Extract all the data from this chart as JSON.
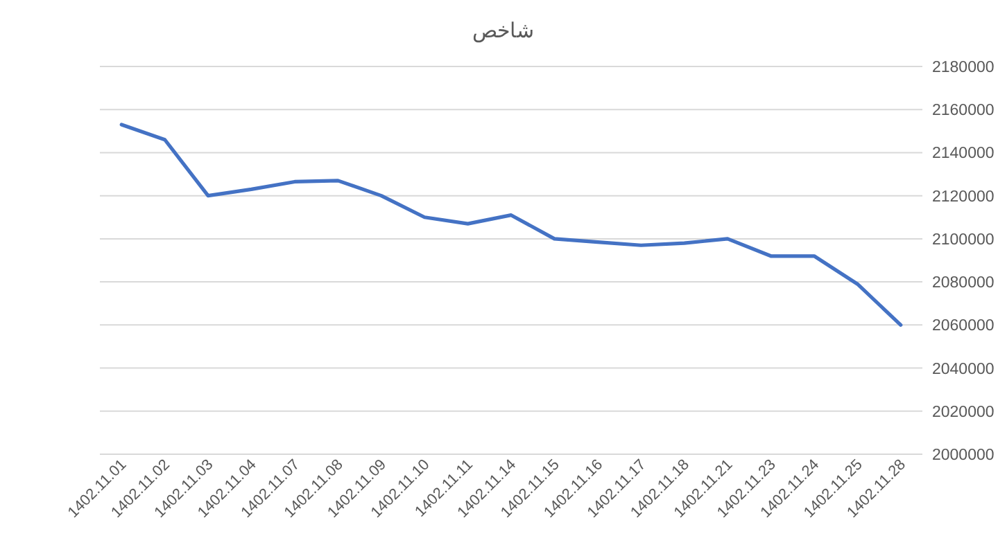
{
  "chart_data": {
    "type": "line",
    "title": "شاخص",
    "categories": [
      "1402.11.01",
      "1402.11.02",
      "1402.11.03",
      "1402.11.04",
      "1402.11.07",
      "1402.11.08",
      "1402.11.09",
      "1402.11.10",
      "1402.11.11",
      "1402.11.14",
      "1402.11.15",
      "1402.11.16",
      "1402.11.17",
      "1402.11.18",
      "1402.11.21",
      "1402.11.23",
      "1402.11.24",
      "1402.11.25",
      "1402.11.28"
    ],
    "values": [
      2153000,
      2146000,
      2120000,
      2123000,
      2126500,
      2127000,
      2120000,
      2110000,
      2107000,
      2111000,
      2100000,
      2098500,
      2097000,
      2098000,
      2100000,
      2092000,
      2092000,
      2079000,
      2060000
    ],
    "color": "#4472c4",
    "ylim": [
      2000000,
      2180000
    ],
    "yticks": [
      2000000,
      2020000,
      2040000,
      2060000,
      2080000,
      2100000,
      2120000,
      2140000,
      2160000,
      2180000
    ],
    "grid": "y",
    "marker": "none",
    "line_style": "solid"
  }
}
